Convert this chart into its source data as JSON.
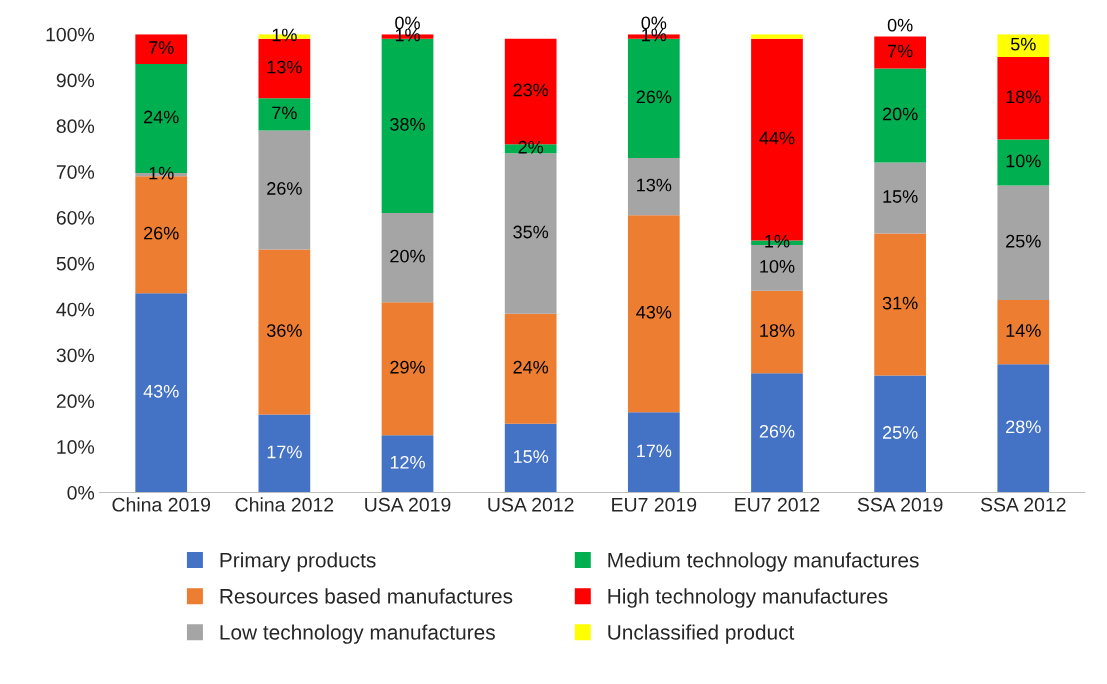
{
  "chart_data": {
    "type": "bar",
    "stacked": true,
    "categories": [
      "China 2019",
      "China 2012",
      "USA 2019",
      "USA 2012",
      "EU7 2019",
      "EU7 2012",
      "SSA 2019",
      "SSA 2012"
    ],
    "series": [
      {
        "name": "Primary products",
        "color": "#4472c4",
        "values": [
          43.5,
          17,
          12.5,
          15,
          17.5,
          26,
          25.5,
          28
        ],
        "value_labels": [
          "43%",
          "17%",
          "12%",
          "15%",
          "17%",
          "26%",
          "25%",
          "28%"
        ]
      },
      {
        "name": "Resources based manufactures",
        "color": "#ed7d31",
        "values": [
          25.5,
          36,
          29,
          24,
          43,
          18,
          31,
          14
        ],
        "value_labels": [
          "26%",
          "36%",
          "29%",
          "24%",
          "43%",
          "18%",
          "31%",
          "14%"
        ]
      },
      {
        "name": "Low technology manufactures",
        "color": "#a5a5a5",
        "values": [
          0.7,
          26,
          19.5,
          35,
          12.5,
          10,
          15.5,
          25
        ],
        "value_labels": [
          "1%",
          "26%",
          "20%",
          "35%",
          "13%",
          "10%",
          "15%",
          "25%"
        ]
      },
      {
        "name": "Medium technology manufactures",
        "color": "#00b050",
        "values": [
          23.8,
          7,
          38,
          2,
          26,
          1,
          20.5,
          10
        ],
        "value_labels": [
          "24%",
          "7%",
          "38%",
          "2%",
          "26%",
          "1%",
          "20%",
          "10%"
        ]
      },
      {
        "name": "High technology manufactures",
        "color": "#ff0000",
        "values": [
          6.5,
          13,
          1,
          23,
          1,
          44,
          7,
          18
        ],
        "value_labels": [
          "7%",
          "13%",
          "1%",
          "23%",
          "1%",
          "44%",
          "7%",
          "18%"
        ]
      },
      {
        "name": "Unclassified product",
        "color": "#ffff00",
        "values": [
          0,
          1,
          0,
          0,
          0,
          1,
          0,
          5
        ],
        "value_labels": [
          null,
          "1%",
          "0%",
          null,
          "0%",
          null,
          "0%",
          "5%"
        ]
      }
    ],
    "ylim": [
      0,
      100
    ],
    "yticks": [
      {
        "value": 0,
        "label": "0%"
      },
      {
        "value": 10,
        "label": "10%"
      },
      {
        "value": 20,
        "label": "20%"
      },
      {
        "value": 30,
        "label": "30%"
      },
      {
        "value": 40,
        "label": "40%"
      },
      {
        "value": 50,
        "label": "50%"
      },
      {
        "value": 60,
        "label": "60%"
      },
      {
        "value": 70,
        "label": "70%"
      },
      {
        "value": 80,
        "label": "80%"
      },
      {
        "value": 90,
        "label": "90%"
      },
      {
        "value": 100,
        "label": "100%"
      }
    ],
    "grid": false,
    "legend": "bottom"
  }
}
